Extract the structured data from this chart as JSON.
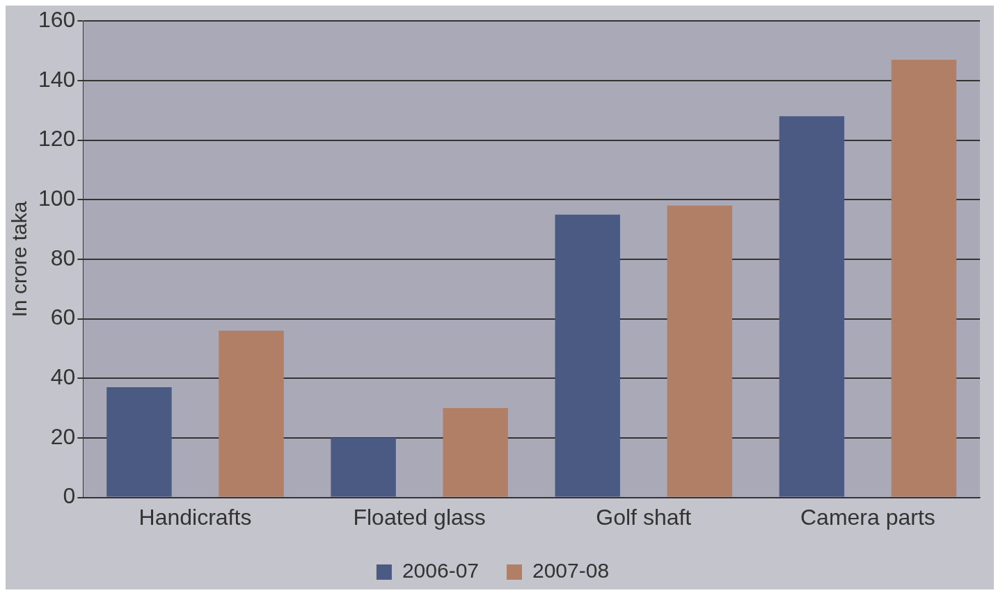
{
  "chart_data": {
    "type": "bar",
    "ylabel": "In crore taka",
    "categories": [
      "Handicrafts",
      "Floated glass",
      "Golf shaft",
      "Camera parts"
    ],
    "series": [
      {
        "name": "2006-07",
        "color": "#4a5a82",
        "values": [
          37,
          20,
          95,
          128
        ]
      },
      {
        "name": "2007-08",
        "color": "#b07f65",
        "values": [
          56,
          30,
          98,
          147
        ]
      }
    ],
    "ylim": [
      0,
      160
    ],
    "yticks": [
      0,
      20,
      40,
      60,
      80,
      100,
      120,
      140,
      160
    ],
    "grid": "y",
    "legend": "bottom"
  }
}
